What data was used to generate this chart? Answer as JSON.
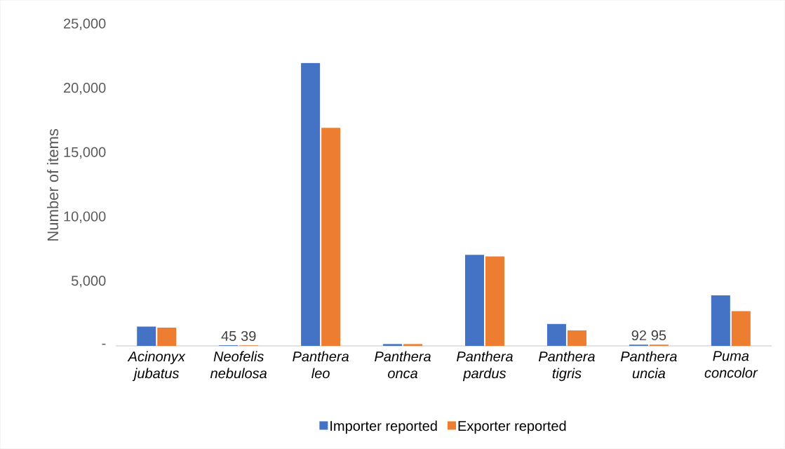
{
  "chart_data": {
    "type": "bar",
    "ylabel": "Number of items",
    "categories": [
      "Acinonyx jubatus",
      "Neofelis nebulosa",
      "Panthera leo",
      "Panthera onca",
      "Panthera pardus",
      "Panthera tigris",
      "Panthera uncia",
      "Puma concolor"
    ],
    "series": [
      {
        "name": "Importer reported",
        "color": "#4472c4",
        "values": [
          1500,
          45,
          22000,
          140,
          7070,
          1700,
          92,
          3920
        ],
        "value_labels": [
          null,
          "45",
          null,
          null,
          null,
          null,
          "92",
          null
        ]
      },
      {
        "name": "Exporter reported",
        "color": "#ed7d31",
        "values": [
          1420,
          39,
          16950,
          140,
          6960,
          1200,
          95,
          2700
        ],
        "value_labels": [
          null,
          "39",
          null,
          null,
          null,
          null,
          "95",
          null
        ]
      }
    ],
    "ylim": [
      0,
      25000
    ],
    "yticks": [
      {
        "value": 0,
        "label": "-"
      },
      {
        "value": 5000,
        "label": "5,000"
      },
      {
        "value": 10000,
        "label": "10,000"
      },
      {
        "value": 15000,
        "label": "15,000"
      },
      {
        "value": 20000,
        "label": "20,000"
      },
      {
        "value": 25000,
        "label": "25,000"
      }
    ],
    "grid": false,
    "legend": "bottom"
  }
}
